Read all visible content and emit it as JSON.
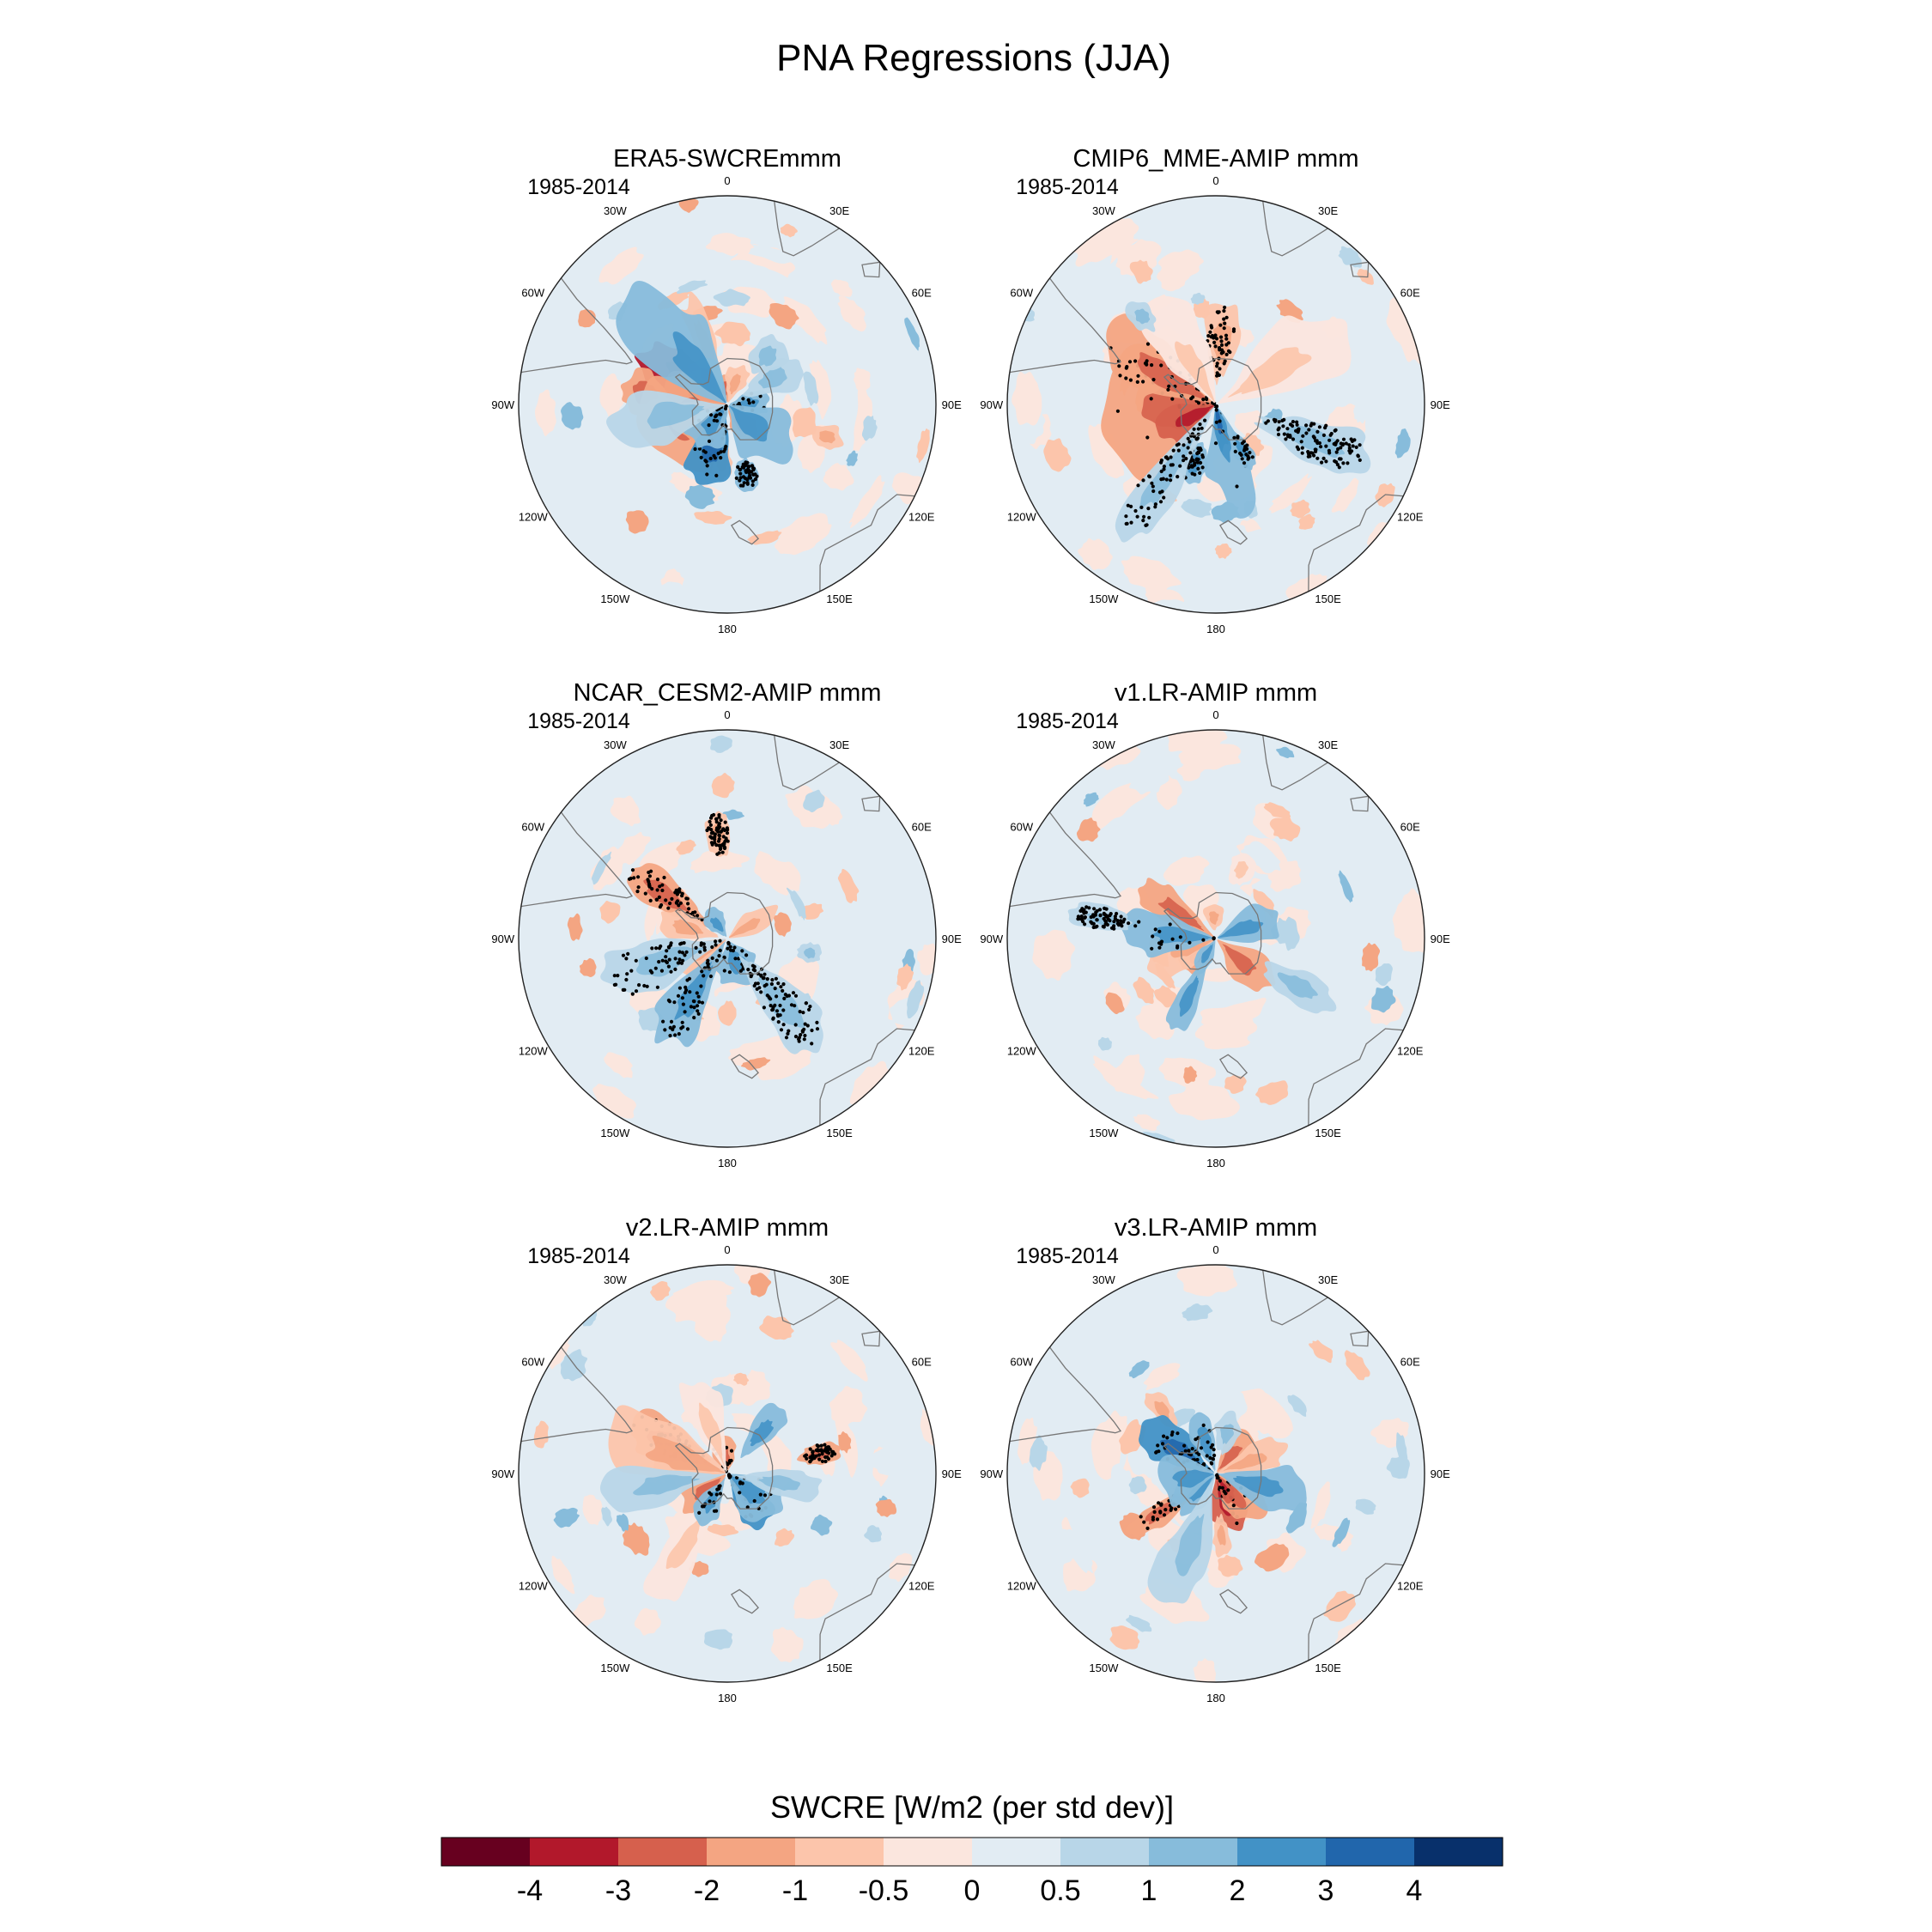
{
  "chart_data": {
    "type": "heatmap",
    "projection": "south-polar-stereographic",
    "title": "PNA Regressions (JJA)",
    "period": "1985-2014",
    "colorbar": {
      "label": "SWCRE [W/m2 (per std dev)]",
      "tick_labels": [
        "-4",
        "-3",
        "-2",
        "-1",
        "-0.5",
        "0",
        "0.5",
        "1",
        "2",
        "3",
        "4"
      ],
      "colors": [
        "#67001f",
        "#b2182b",
        "#d6604d",
        "#f4a582",
        "#fcc5ab",
        "#fbe6de",
        "#e2ecf3",
        "#b8d6e8",
        "#87bcdb",
        "#4292c6",
        "#2166ac",
        "#08306b"
      ]
    },
    "longitude_labels": [
      "0",
      "30E",
      "60E",
      "90E",
      "120E",
      "150E",
      "180",
      "150W",
      "120W",
      "90W",
      "60W",
      "30W"
    ],
    "panels": [
      {
        "title": "ERA5-SWCREmmm",
        "blobs": [
          [
            -3.5,
            -58,
            0.28,
            0.08,
            0.2,
            0
          ],
          [
            -3,
            -65,
            0.18,
            0.08,
            0.12,
            0
          ],
          [
            -2,
            -82,
            0.12,
            0.1,
            0.4,
            0
          ],
          [
            -2,
            -112,
            0.3,
            0.16,
            0.15,
            0
          ],
          [
            -2,
            -122,
            0.2,
            0.1,
            0.08,
            0
          ],
          [
            -1,
            -175,
            0.08,
            0.05,
            0.28,
            0
          ],
          [
            -2,
            -10,
            0.07,
            0.06,
            0.08,
            0
          ],
          [
            -2,
            145,
            0.1,
            0.06,
            0.1,
            0
          ],
          [
            -1,
            108,
            0.08,
            0.06,
            0.5,
            0
          ],
          [
            -1,
            20,
            0.1,
            0.05,
            0.1,
            0
          ],
          [
            -1,
            -20,
            0.25,
            0.05,
            0.3,
            0
          ],
          [
            2,
            -162,
            0.2,
            0.08,
            0.2,
            1
          ],
          [
            1.5,
            -140,
            0.15,
            0.08,
            0.1,
            1
          ],
          [
            1,
            -35,
            0.12,
            0.06,
            0.15,
            0
          ],
          [
            1,
            -40,
            0.55,
            0.06,
            0.12,
            0
          ],
          [
            1.5,
            88,
            0.1,
            0.06,
            0.1,
            1
          ],
          [
            1,
            130,
            0.25,
            0.08,
            0.12,
            0
          ],
          [
            1,
            165,
            0.08,
            0.06,
            0.35,
            1
          ],
          [
            0.5,
            -100,
            0.3,
            0.1,
            0.25,
            0
          ],
          [
            0.8,
            60,
            0.15,
            0.08,
            0.25,
            0
          ],
          [
            0.8,
            40,
            0.1,
            0.08,
            0.3,
            0
          ]
        ]
      },
      {
        "title": "CMIP6_MME-AMIP  mmm",
        "blobs": [
          [
            -2,
            -95,
            0.45,
            0.14,
            0.14,
            1
          ],
          [
            -2.5,
            -118,
            0.2,
            0.06,
            0.1,
            0
          ],
          [
            -1.5,
            -60,
            0.4,
            0.1,
            0.25,
            1
          ],
          [
            -1,
            5,
            0.2,
            0.08,
            0.3,
            1
          ],
          [
            -0.5,
            60,
            0.4,
            0.12,
            0.3,
            0
          ],
          [
            -0.5,
            -30,
            0.4,
            0.06,
            0.15,
            0
          ],
          [
            1.5,
            168,
            0.45,
            0.05,
            0.06,
            1
          ],
          [
            2,
            170,
            0.18,
            0.04,
            0.04,
            1
          ],
          [
            1,
            -160,
            0.1,
            0.06,
            0.3,
            1
          ],
          [
            1,
            150,
            0.1,
            0.04,
            0.25,
            1
          ],
          [
            0.5,
            -145,
            0.4,
            0.08,
            0.4,
            1
          ],
          [
            0.5,
            110,
            0.3,
            0.1,
            0.5,
            1
          ],
          [
            0.5,
            -40,
            0.08,
            0.06,
            0.55,
            0
          ]
        ]
      },
      {
        "title": "NCAR_CESM2-AMIP  mmm",
        "blobs": [
          [
            -1.5,
            -55,
            0.25,
            0.08,
            0.35,
            1
          ],
          [
            -1,
            -75,
            0.15,
            0.06,
            0.2,
            0
          ],
          [
            -1.5,
            -140,
            0.12,
            0.06,
            0.15,
            0
          ],
          [
            -1,
            -120,
            0.2,
            0.05,
            0.08,
            0
          ],
          [
            -1,
            -5,
            0.12,
            0.06,
            0.5,
            1
          ],
          [
            -1,
            60,
            0.2,
            0.05,
            0.08,
            0
          ],
          [
            1,
            -148,
            0.3,
            0.08,
            0.3,
            1
          ],
          [
            1.5,
            160,
            0.12,
            0.08,
            0.12,
            1
          ],
          [
            0.5,
            140,
            0.3,
            0.1,
            0.4,
            1
          ],
          [
            0.5,
            -110,
            0.35,
            0.1,
            0.3,
            1
          ],
          [
            1,
            -35,
            0.08,
            0.06,
            0.08,
            0
          ],
          [
            0.8,
            100,
            0.06,
            0.05,
            0.4,
            0
          ]
        ]
      },
      {
        "title": "v1.LR-AMIP  mmm",
        "blobs": [
          [
            -1.5,
            -55,
            0.25,
            0.06,
            0.2,
            0
          ],
          [
            -1.5,
            -135,
            0.1,
            0.05,
            0.12,
            0
          ],
          [
            -1.5,
            132,
            0.2,
            0.06,
            0.14,
            0
          ],
          [
            -1,
            -110,
            0.3,
            0.06,
            0.08,
            0
          ],
          [
            -1,
            -5,
            0.06,
            0.05,
            0.1,
            0
          ],
          [
            -0.5,
            20,
            0.08,
            0.06,
            0.35,
            0
          ],
          [
            1.5,
            -155,
            0.2,
            0.05,
            0.3,
            0
          ],
          [
            1,
            -85,
            0.3,
            0.06,
            0.15,
            1
          ],
          [
            1,
            70,
            0.25,
            0.06,
            0.1,
            0
          ],
          [
            1,
            -150,
            0.1,
            0.05,
            0.08,
            0
          ],
          [
            0.5,
            -80,
            0.15,
            0.06,
            0.55,
            1
          ],
          [
            0.5,
            120,
            0.2,
            0.08,
            0.45,
            0
          ]
        ]
      },
      {
        "title": "v2.LR-AMIP  mmm",
        "blobs": [
          [
            -1.5,
            -62,
            0.25,
            0.08,
            0.3,
            1
          ],
          [
            -1.5,
            -10,
            0.1,
            0.07,
            0.08,
            1
          ],
          [
            -1,
            -95,
            0.15,
            0.06,
            0.1,
            0
          ],
          [
            -1.5,
            -128,
            0.15,
            0.05,
            0.12,
            0
          ],
          [
            -1.5,
            78,
            0.1,
            0.05,
            0.45,
            1
          ],
          [
            -1,
            -70,
            0.4,
            0.1,
            0.2,
            0
          ],
          [
            -0.5,
            -20,
            0.3,
            0.06,
            0.2,
            0
          ],
          [
            -0.5,
            -150,
            0.3,
            0.08,
            0.4,
            0
          ],
          [
            2,
            142,
            0.15,
            0.06,
            0.15,
            1
          ],
          [
            1.5,
            128,
            0.2,
            0.07,
            0.12,
            1
          ],
          [
            1,
            -150,
            0.12,
            0.05,
            0.15,
            1
          ],
          [
            1,
            40,
            0.15,
            0.06,
            0.25,
            0
          ],
          [
            0.5,
            -100,
            0.3,
            0.08,
            0.3,
            0
          ],
          [
            0.5,
            100,
            0.2,
            0.06,
            0.25,
            0
          ]
        ]
      },
      {
        "title": "v3.LR-AMIP  mmm",
        "blobs": [
          [
            -2.5,
            160,
            0.2,
            0.06,
            0.1,
            1
          ],
          [
            -2,
            140,
            0.2,
            0.06,
            0.1,
            1
          ],
          [
            -3,
            150,
            0.08,
            0.04,
            0.07,
            1
          ],
          [
            -1.5,
            -125,
            0.2,
            0.05,
            0.3,
            1
          ],
          [
            -1,
            -80,
            0.1,
            0.05,
            0.1,
            0
          ],
          [
            -1.5,
            40,
            0.15,
            0.06,
            0.1,
            0
          ],
          [
            -1,
            70,
            0.2,
            0.05,
            0.15,
            0
          ],
          [
            -1,
            -40,
            0.1,
            0.05,
            0.4,
            0
          ],
          [
            -1,
            175,
            0.1,
            0.04,
            0.3,
            0
          ],
          [
            2,
            -58,
            0.2,
            0.08,
            0.2,
            1
          ],
          [
            1.5,
            -18,
            0.15,
            0.05,
            0.15,
            1
          ],
          [
            1.5,
            -135,
            0.15,
            0.06,
            0.1,
            0
          ],
          [
            1,
            105,
            0.25,
            0.08,
            0.2,
            0
          ],
          [
            1,
            -100,
            0.2,
            0.08,
            0.1,
            0
          ],
          [
            0.8,
            15,
            0.1,
            0.06,
            0.2,
            0
          ],
          [
            0.5,
            -160,
            0.3,
            0.1,
            0.35,
            0
          ]
        ]
      }
    ]
  }
}
